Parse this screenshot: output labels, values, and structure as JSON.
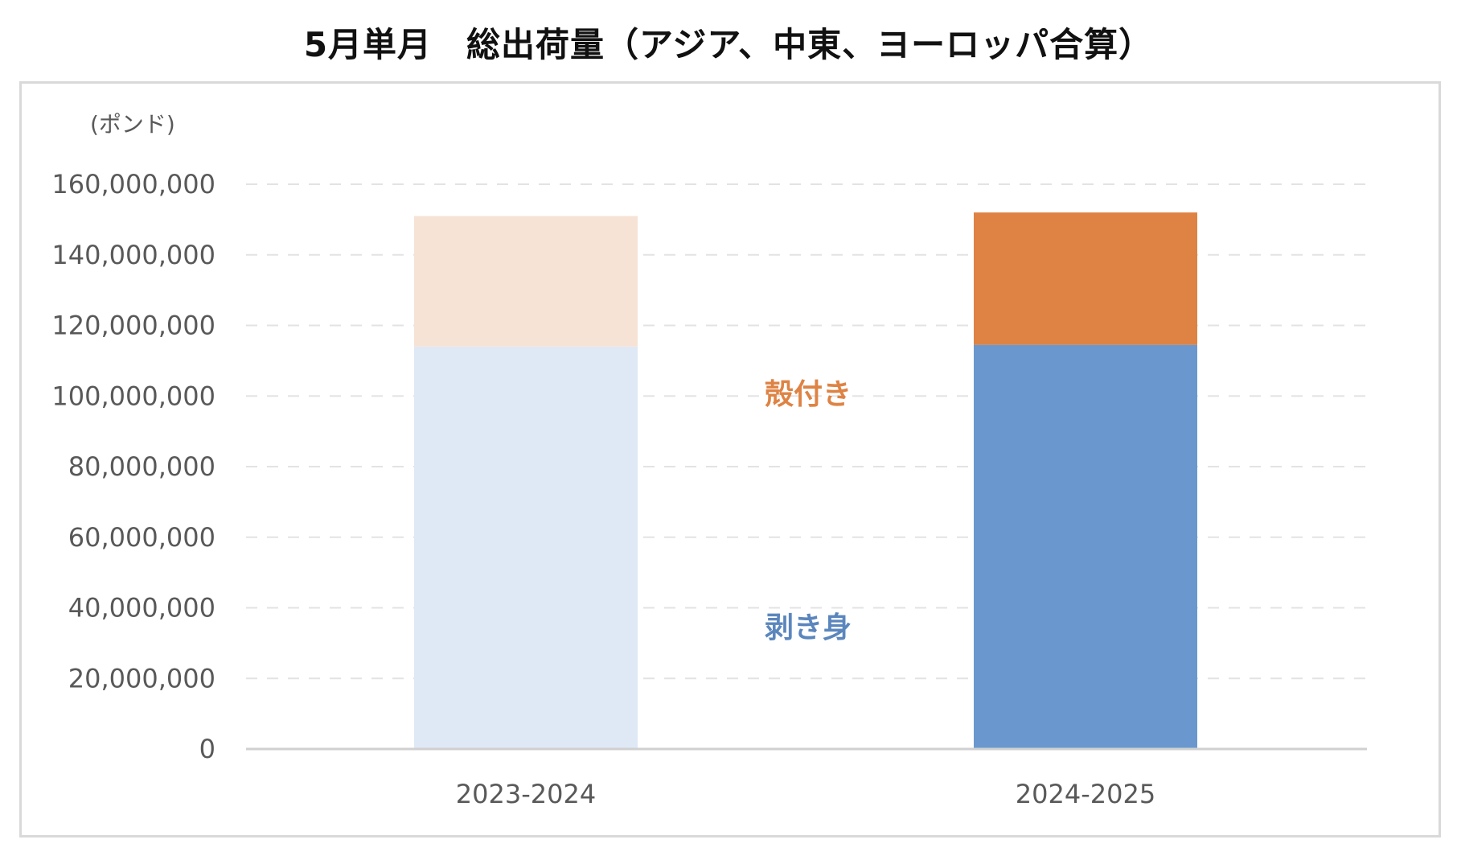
{
  "chart_data": {
    "type": "bar",
    "stacked": true,
    "title": "5月単月　総出荷量（アジア、中東、ヨーロッパ合算）",
    "unit_label": "(ポンド)",
    "categories": [
      "2023-2024",
      "2024-2025"
    ],
    "series": [
      {
        "name": "剥き身",
        "values": [
          114000000,
          114500000
        ],
        "colors": [
          "#dfe9f5",
          "#6a98ce"
        ],
        "label_color": "#5b86bd"
      },
      {
        "name": "殻付き",
        "values": [
          37000000,
          37500000
        ],
        "colors": [
          "#f7e3d6",
          "#de8344"
        ],
        "label_color": "#de8344"
      }
    ],
    "ylim": [
      0,
      160000000
    ],
    "yticks": [
      0,
      20000000,
      40000000,
      60000000,
      80000000,
      100000000,
      120000000,
      140000000,
      160000000
    ],
    "ytick_labels": [
      "0",
      "20,000,000",
      "40,000,000",
      "60,000,000",
      "80,000,000",
      "100,000,000",
      "120,000,000",
      "140,000,000",
      "160,000,000"
    ],
    "grid": true,
    "grid_style": "dashed",
    "gridline_color": "#e3e3e3",
    "axis_color": "#d0d0d0"
  }
}
